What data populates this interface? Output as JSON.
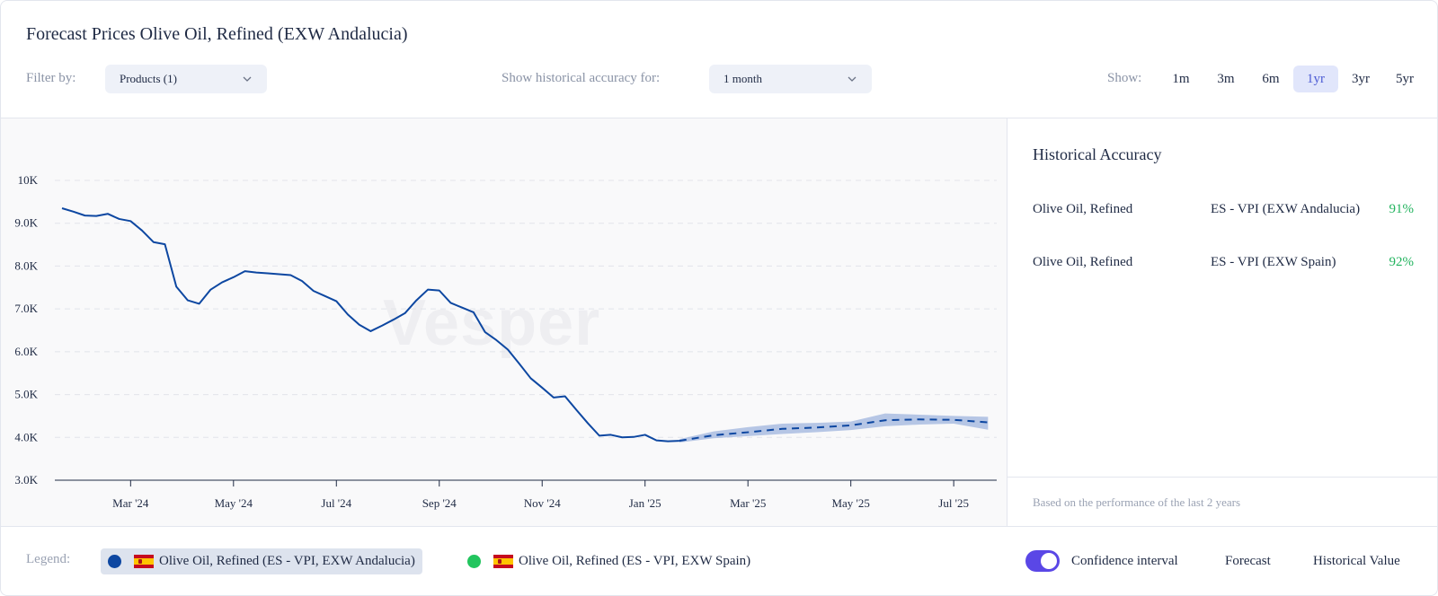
{
  "header": {
    "title": "Forecast Prices Olive Oil, Refined (EXW Andalucia)",
    "filter_label": "Filter by:",
    "products_select": "Products (1)",
    "historical_label": "Show historical accuracy for:",
    "accuracy_select": "1 month",
    "show_label": "Show:",
    "ranges": [
      "1m",
      "3m",
      "6m",
      "1yr",
      "3yr",
      "5yr"
    ],
    "active_range": "1yr"
  },
  "watermark": "Vesper",
  "chart_data": {
    "type": "line",
    "title": "Forecast Prices Olive Oil, Refined (EXW Andalucia)",
    "xlabel": "",
    "ylabel": "",
    "ylim": [
      3000,
      10000
    ],
    "y_ticks": [
      3000,
      4000,
      5000,
      6000,
      7000,
      8000,
      9000,
      10000
    ],
    "y_tick_labels": [
      "3.0K",
      "4.0K",
      "5.0K",
      "6.0K",
      "7.0K",
      "8.0K",
      "9.0K",
      "10K"
    ],
    "x_tick_labels": [
      "Mar '24",
      "May '24",
      "Jul '24",
      "Sep '24",
      "Nov '24",
      "Jan '25",
      "Mar '25",
      "May '25",
      "Jul '25"
    ],
    "x_unit": "weeks since 2024-01-15",
    "xlim": [
      0,
      82
    ],
    "x_ticks": [
      6,
      15,
      24,
      33,
      42,
      51,
      60,
      69,
      78
    ],
    "grid": true,
    "series": [
      {
        "name": "Olive Oil, Refined (ES - VPI, EXW Andalucia)",
        "style": "historical",
        "color": "#0d47a1",
        "x": [
          0,
          1,
          2,
          3,
          4,
          5,
          6,
          7,
          8,
          9,
          10,
          11,
          12,
          13,
          14,
          15,
          16,
          17,
          18,
          19,
          20,
          21,
          22,
          23,
          24,
          25,
          26,
          27,
          28,
          29,
          30,
          31,
          32,
          33,
          34,
          35,
          36,
          37,
          38,
          39,
          40,
          41,
          42,
          43,
          44,
          45,
          46,
          47,
          48,
          49,
          50,
          51,
          52,
          53,
          54
        ],
        "values": [
          9350,
          9270,
          9180,
          9170,
          9220,
          9100,
          9050,
          8830,
          8560,
          8510,
          7520,
          7200,
          7120,
          7450,
          7620,
          7740,
          7880,
          7850,
          7830,
          7810,
          7790,
          7650,
          7420,
          7300,
          7180,
          6870,
          6630,
          6480,
          6610,
          6750,
          6900,
          7200,
          7450,
          7430,
          7140,
          7030,
          6920,
          6460,
          6270,
          6050,
          5720,
          5380,
          5160,
          4930,
          4960,
          4640,
          4330,
          4040,
          4060,
          4000,
          4010,
          4060,
          3930,
          3910,
          3920
        ]
      },
      {
        "name": "Forecast",
        "style": "forecast",
        "color": "#0d47a1",
        "x": [
          54,
          57,
          60,
          63,
          66,
          69,
          72,
          75,
          78,
          81
        ],
        "values": [
          3920,
          4050,
          4120,
          4200,
          4230,
          4280,
          4400,
          4420,
          4410,
          4350
        ]
      }
    ],
    "confidence_interval": {
      "x": [
        54,
        57,
        60,
        63,
        66,
        69,
        72,
        75,
        78,
        81
      ],
      "lower": [
        3880,
        3980,
        4030,
        4080,
        4120,
        4170,
        4260,
        4300,
        4320,
        4180
      ],
      "upper": [
        3960,
        4140,
        4240,
        4320,
        4340,
        4370,
        4560,
        4530,
        4500,
        4480
      ]
    }
  },
  "accuracy": {
    "title": "Historical Accuracy",
    "rows": [
      {
        "product": "Olive Oil, Refined",
        "source": "ES - VPI (EXW Andalucia)",
        "value": "91%"
      },
      {
        "product": "Olive Oil, Refined",
        "source": "ES - VPI (EXW Spain)",
        "value": "92%"
      }
    ],
    "note": "Based on the performance of the last 2 years"
  },
  "legend": {
    "label": "Legend:",
    "items": [
      {
        "label": "Olive Oil, Refined (ES - VPI, EXW Andalucia)",
        "color": "#0d47a1"
      },
      {
        "label": "Olive Oil, Refined (ES - VPI, EXW Spain)",
        "color": "#22c55e"
      }
    ],
    "confidence_label": "Confidence interval",
    "forecast_label": "Forecast",
    "historical_label": "Historical Value"
  }
}
